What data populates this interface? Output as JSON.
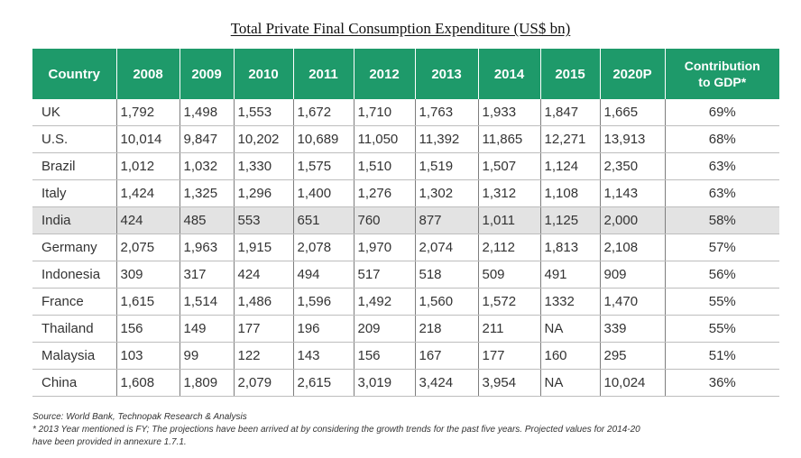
{
  "chart_data": {
    "type": "table",
    "title": "Total Private Final Consumption Expenditure (US$ bn)",
    "columns": [
      "Country",
      "2008",
      "2009",
      "2010",
      "2011",
      "2012",
      "2013",
      "2014",
      "2015",
      "2020P",
      "Contribution to GDP*"
    ],
    "header_contribution_lines": [
      "Contribution",
      "to GDP*"
    ],
    "highlight_row": "India",
    "rows": [
      [
        "UK",
        "1,792",
        "1,498",
        "1,553",
        "1,672",
        "1,710",
        "1,763",
        "1,933",
        "1,847",
        "1,665",
        "69%"
      ],
      [
        "U.S.",
        "10,014",
        "9,847",
        "10,202",
        "10,689",
        "11,050",
        "11,392",
        "11,865",
        "12,271",
        "13,913",
        "68%"
      ],
      [
        "Brazil",
        "1,012",
        "1,032",
        "1,330",
        "1,575",
        "1,510",
        "1,519",
        "1,507",
        "1,124",
        "2,350",
        "63%"
      ],
      [
        "Italy",
        "1,424",
        "1,325",
        "1,296",
        "1,400",
        "1,276",
        "1,302",
        "1,312",
        "1,108",
        "1,143",
        "63%"
      ],
      [
        "India",
        "424",
        "485",
        "553",
        "651",
        "760",
        "877",
        "1,011",
        "1,125",
        "2,000",
        "58%"
      ],
      [
        "Germany",
        "2,075",
        "1,963",
        "1,915",
        "2,078",
        "1,970",
        "2,074",
        "2,112",
        "1,813",
        "2,108",
        "57%"
      ],
      [
        "Indonesia",
        "309",
        "317",
        "424",
        "494",
        "517",
        "518",
        "509",
        "491",
        "909",
        "56%"
      ],
      [
        "France",
        "1,615",
        "1,514",
        "1,486",
        "1,596",
        "1,492",
        "1,560",
        "1,572",
        "1332",
        "1,470",
        "55%"
      ],
      [
        "Thailand",
        "156",
        "149",
        "177",
        "196",
        "209",
        "218",
        "211",
        "NA",
        "339",
        "55%"
      ],
      [
        "Malaysia",
        "103",
        "99",
        "122",
        "143",
        "156",
        "167",
        "177",
        "160",
        "295",
        "51%"
      ],
      [
        "China",
        "1,608",
        "1,809",
        "2,079",
        "2,615",
        "3,019",
        "3,424",
        "3,954",
        "NA",
        "10,024",
        "36%"
      ]
    ],
    "source": "Source: World Bank, Technopak Research & Analysis",
    "footnote_lines": [
      "* 2013 Year mentioned is FY; The projections have been arrived at by considering the growth trends for the past five years. Projected values for 2014-20",
      "have been provided in annexure 1.7.1."
    ]
  },
  "colors": {
    "header_bg": "#1e9a6a",
    "highlight_bg": "#e3e3e3"
  }
}
